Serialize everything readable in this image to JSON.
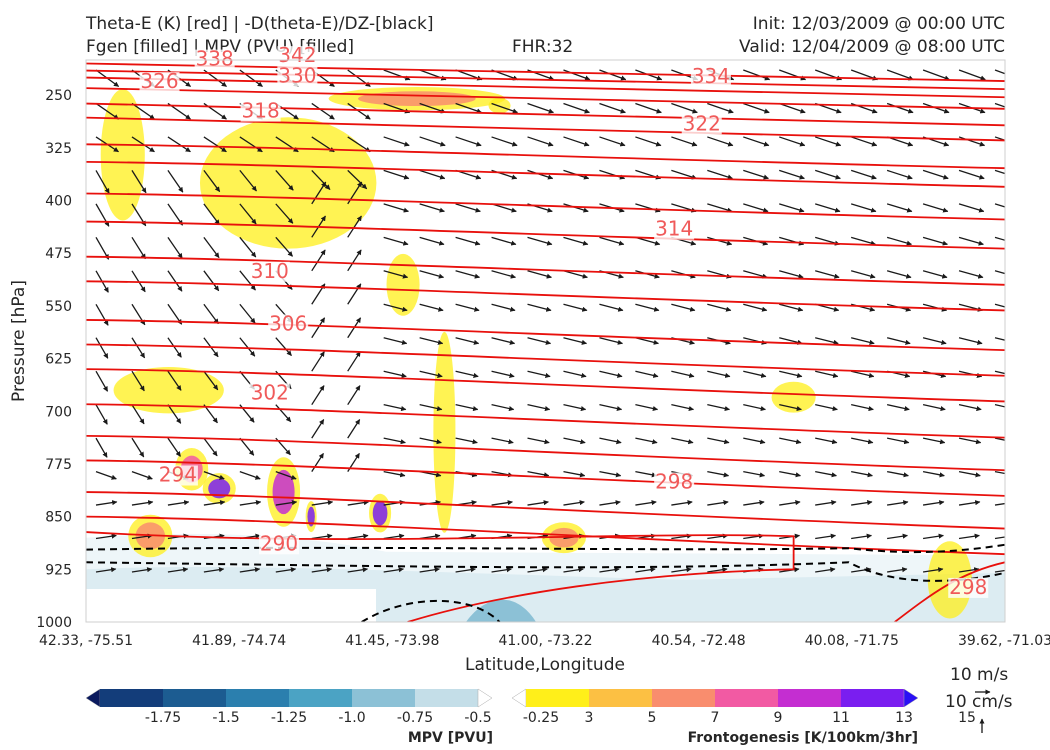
{
  "header": {
    "title_left_1": "Theta-E (K) [red] | -D(theta-E)/DZ-[black]",
    "title_left_2": "Fgen [filled] | MPV (PVU) [filled]",
    "fhr": "FHR:32",
    "init": "Init: 12/03/2009 @ 00:00 UTC",
    "valid": "Valid: 12/04/2009 @ 08:00 UTC"
  },
  "chart_data": {
    "type": "cross-section",
    "ylabel": "Pressure [hPa]",
    "xlabel": "Latitude,Longitude",
    "y_scale": "linear, inverted",
    "ylim": [
      1000,
      200
    ],
    "y_ticks": [
      "250",
      "325",
      "400",
      "475",
      "550",
      "625",
      "700",
      "775",
      "850",
      "925",
      "1000"
    ],
    "x_ticks": [
      "42.33, -75.51",
      "41.89, -74.74",
      "41.45, -73.98",
      "41.00, -73.22",
      "40.54, -72.48",
      "40.08, -71.75",
      "39.62, -71.03"
    ],
    "theta_e_labels": [
      {
        "value": "338",
        "x": 0.14,
        "p": 208
      },
      {
        "value": "342",
        "x": 0.23,
        "p": 203
      },
      {
        "value": "326",
        "x": 0.08,
        "p": 240
      },
      {
        "value": "330",
        "x": 0.23,
        "p": 232
      },
      {
        "value": "334",
        "x": 0.68,
        "p": 233
      },
      {
        "value": "318",
        "x": 0.19,
        "p": 282
      },
      {
        "value": "322",
        "x": 0.67,
        "p": 300
      },
      {
        "value": "314",
        "x": 0.64,
        "p": 450
      },
      {
        "value": "310",
        "x": 0.2,
        "p": 510
      },
      {
        "value": "306",
        "x": 0.22,
        "p": 585
      },
      {
        "value": "302",
        "x": 0.2,
        "p": 683
      },
      {
        "value": "294",
        "x": 0.1,
        "p": 800
      },
      {
        "value": "298",
        "x": 0.64,
        "p": 810
      },
      {
        "value": "290",
        "x": 0.21,
        "p": 898
      },
      {
        "value": "298",
        "x": 0.96,
        "p": 960
      }
    ],
    "mpv_colorbar": {
      "label": "MPV [PVU]",
      "ticks": [
        "-1.75",
        "-1.5",
        "-1.25",
        "-1.0",
        "-0.75",
        "-0.5",
        "-0.25"
      ],
      "colors": [
        "#0b1a5e",
        "#133d7a",
        "#1c5c91",
        "#2b7fae",
        "#4ba3c4",
        "#8cc1d6",
        "#c4dee8",
        "#ffffff"
      ]
    },
    "fgen_colorbar": {
      "label": "Frontogenesis [K/100km/3hr]",
      "ticks": [
        "3",
        "5",
        "7",
        "9",
        "11",
        "13",
        "15"
      ],
      "colors": [
        "#ffffff",
        "#ffef1a",
        "#fcc043",
        "#f98d6e",
        "#f25aa3",
        "#c42ed1",
        "#7a1ef0",
        "#2a10f5"
      ]
    },
    "quiver_key": {
      "h": "10 m/s",
      "v": "10 cm/s"
    }
  }
}
